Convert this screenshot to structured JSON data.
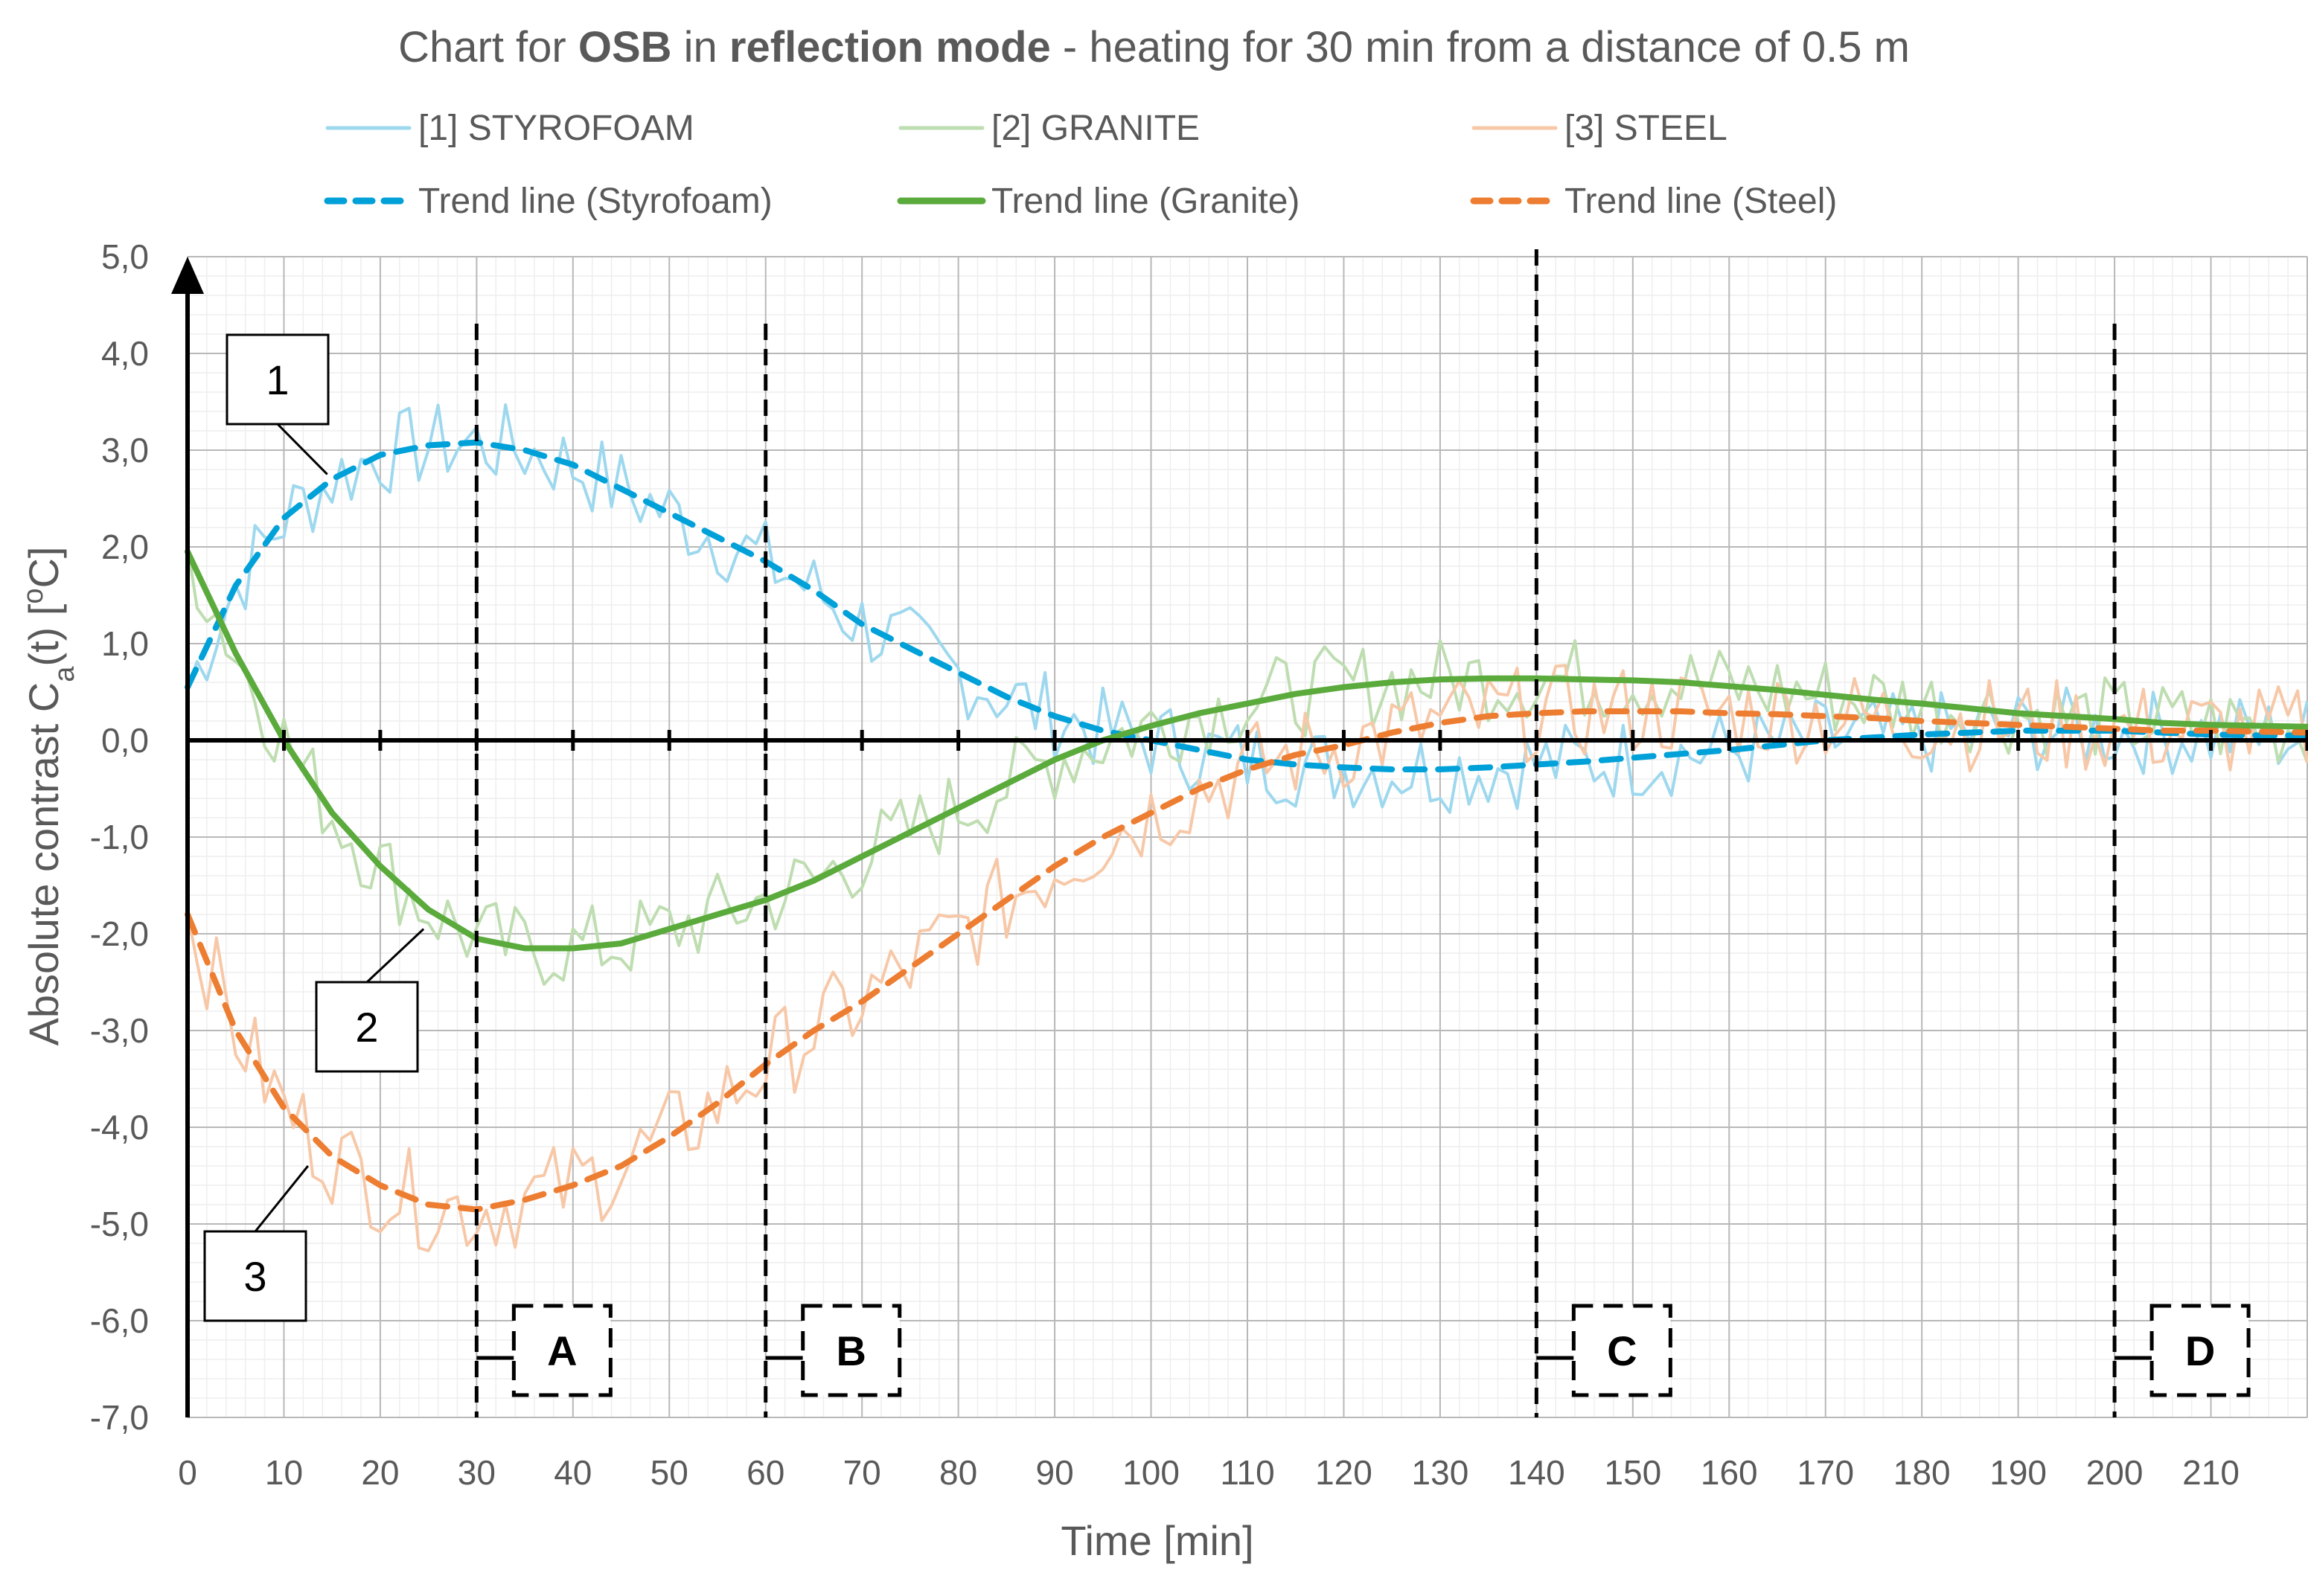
{
  "chart_data": {
    "type": "line",
    "title_parts": [
      "Chart for ",
      "OSB",
      " in ",
      "reflection mode",
      " - heating for 30 min from a distance of 0.5 m"
    ],
    "xlabel": "Time [min]",
    "ylabel_main": "Absolute contrast C",
    "ylabel_sub": "a",
    "ylabel_rest": "(t)   [",
    "ylabel_sup": "o",
    "ylabel_end": "C]",
    "xlim": [
      0,
      220
    ],
    "ylim": [
      -7.0,
      5.0
    ],
    "x_ticks": [
      "0",
      "10",
      "20",
      "30",
      "40",
      "50",
      "60",
      "70",
      "80",
      "90",
      "100",
      "110",
      "120",
      "130",
      "140",
      "150",
      "160",
      "170",
      "180",
      "190",
      "200",
      "210"
    ],
    "y_ticks": [
      "5,0",
      "4,0",
      "3,0",
      "2,0",
      "1,0",
      "0,0",
      "-1,0",
      "-2,0",
      "-3,0",
      "-4,0",
      "-5,0",
      "-6,0",
      "-7,0"
    ],
    "colors": {
      "styrofoam": "#00A0D8",
      "granite": "#5AAA3C",
      "steel": "#ED7D31",
      "styrofoam_light": "#9ED8EE",
      "granite_light": "#BEDDB0",
      "steel_light": "#F7C8A8"
    },
    "legend": [
      {
        "label": "[1] STYROFOAM",
        "key": "styrofoam_light",
        "style": "solid"
      },
      {
        "label": "[2] GRANITE",
        "key": "granite_light",
        "style": "solid"
      },
      {
        "label": "[3] STEEL",
        "key": "steel_light",
        "style": "solid"
      },
      {
        "label": "Trend line (Styrofoam)",
        "key": "styrofoam",
        "style": "dash"
      },
      {
        "label": "Trend line (Granite)",
        "key": "granite",
        "style": "solid"
      },
      {
        "label": "Trend line (Steel)",
        "key": "steel",
        "style": "dash"
      }
    ],
    "trend_x": [
      0,
      5,
      10,
      15,
      20,
      25,
      30,
      35,
      40,
      45,
      50,
      55,
      60,
      65,
      70,
      75,
      80,
      85,
      90,
      95,
      100,
      105,
      110,
      115,
      120,
      125,
      130,
      135,
      140,
      145,
      150,
      155,
      160,
      165,
      170,
      175,
      180,
      185,
      190,
      195,
      200,
      205,
      210,
      215,
      220
    ],
    "series": [
      {
        "name": "Trend line (Styrofoam)",
        "key": "styrofoam",
        "style": "dash",
        "values": [
          0.55,
          1.6,
          2.3,
          2.7,
          2.95,
          3.05,
          3.08,
          3.0,
          2.85,
          2.6,
          2.35,
          2.1,
          1.85,
          1.55,
          1.2,
          0.95,
          0.7,
          0.45,
          0.25,
          0.1,
          0.0,
          -0.1,
          -0.2,
          -0.25,
          -0.28,
          -0.3,
          -0.3,
          -0.28,
          -0.25,
          -0.22,
          -0.18,
          -0.14,
          -0.1,
          -0.05,
          0.0,
          0.03,
          0.06,
          0.08,
          0.1,
          0.1,
          0.1,
          0.08,
          0.06,
          0.05,
          0.05
        ]
      },
      {
        "name": "Trend line (Granite)",
        "key": "granite",
        "style": "solid",
        "values": [
          1.95,
          0.9,
          0.0,
          -0.75,
          -1.3,
          -1.75,
          -2.05,
          -2.15,
          -2.15,
          -2.1,
          -1.95,
          -1.8,
          -1.65,
          -1.45,
          -1.2,
          -0.95,
          -0.7,
          -0.45,
          -0.2,
          0.0,
          0.15,
          0.28,
          0.38,
          0.48,
          0.55,
          0.6,
          0.63,
          0.64,
          0.64,
          0.63,
          0.62,
          0.6,
          0.56,
          0.52,
          0.47,
          0.42,
          0.38,
          0.33,
          0.28,
          0.25,
          0.22,
          0.18,
          0.16,
          0.15,
          0.14
        ]
      },
      {
        "name": "Trend line (Steel)",
        "key": "steel",
        "style": "dash",
        "values": [
          -1.8,
          -3.0,
          -3.8,
          -4.3,
          -4.6,
          -4.8,
          -4.85,
          -4.75,
          -4.6,
          -4.4,
          -4.1,
          -3.75,
          -3.35,
          -3.0,
          -2.7,
          -2.35,
          -2.0,
          -1.65,
          -1.3,
          -1.0,
          -0.75,
          -0.5,
          -0.3,
          -0.15,
          -0.05,
          0.08,
          0.18,
          0.25,
          0.28,
          0.3,
          0.3,
          0.3,
          0.28,
          0.27,
          0.25,
          0.23,
          0.2,
          0.18,
          0.16,
          0.14,
          0.12,
          0.1,
          0.1,
          0.09,
          0.08
        ]
      },
      {
        "name": "[1] STYROFOAM",
        "key": "styrofoam_light",
        "style": "noisy",
        "base": "Trend line (Styrofoam)",
        "amplitude": 0.45
      },
      {
        "name": "[2] GRANITE",
        "key": "granite_light",
        "style": "noisy",
        "base": "Trend line (Granite)",
        "amplitude": 0.45
      },
      {
        "name": "[3] STEEL",
        "key": "steel_light",
        "style": "noisy",
        "base": "Trend line (Steel)",
        "amplitude": 0.5
      }
    ],
    "callouts": [
      {
        "label": "1",
        "target_x": 14.5,
        "target_y": 2.75
      },
      {
        "label": "2",
        "target_x": 24.5,
        "target_y": -1.95
      },
      {
        "label": "3",
        "target_x": 12.5,
        "target_y": -4.4
      }
    ],
    "regions": [
      {
        "label": "A",
        "x": 30
      },
      {
        "label": "B",
        "x": 60
      },
      {
        "label": "C",
        "x": 140
      },
      {
        "label": "D",
        "x": 200
      }
    ]
  }
}
